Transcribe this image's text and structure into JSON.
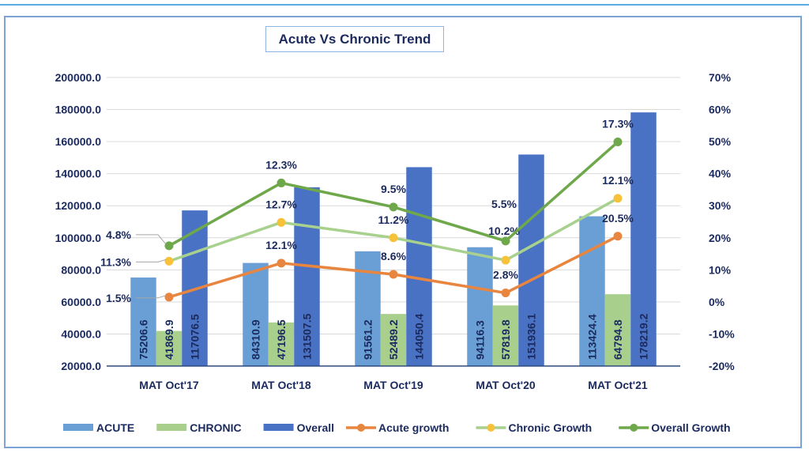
{
  "chart_data": {
    "type": "bar",
    "title": "Acute Vs Chronic Trend",
    "categories": [
      "MAT Oct'17",
      "MAT Oct'18",
      "MAT Oct'19",
      "MAT Oct'20",
      "MAT Oct'21"
    ],
    "y_left": {
      "range": [
        20000,
        200000
      ],
      "ticks": [
        "200000.0",
        "180000.0",
        "160000.0",
        "140000.0",
        "120000.0",
        "100000.0",
        "80000.0",
        "60000.0",
        "40000.0",
        "20000.0"
      ]
    },
    "y_right": {
      "range": [
        -20,
        70
      ],
      "ticks": [
        "70%",
        "60%",
        "50%",
        "40%",
        "30%",
        "20%",
        "10%",
        "0%",
        "-10%",
        "-20%"
      ]
    },
    "grid": true,
    "legend_position": "bottom",
    "bar_series": [
      {
        "name": "ACUTE",
        "color": "#6A9FD6",
        "values": [
          75206.6,
          84310.9,
          91561.2,
          94116.3,
          113424.4
        ],
        "labels": [
          "75206.6",
          "84310.9",
          "91561.2",
          "94116.3",
          "113424.4"
        ]
      },
      {
        "name": "CHRONIC",
        "color": "#A9CF8C",
        "values": [
          41869.9,
          47196.5,
          52489.2,
          57819.8,
          64794.8
        ],
        "labels": [
          "41869.9",
          "47196.5",
          "52489.2",
          "57819.8",
          "64794.8"
        ]
      },
      {
        "name": "Overall",
        "color": "#4A72C4",
        "values": [
          117076.5,
          131507.5,
          144050.4,
          151936.1,
          178219.2
        ],
        "labels": [
          "117076.5",
          "131507.5",
          "144050.4",
          "151936.1",
          "178219.2"
        ]
      }
    ],
    "line_series": [
      {
        "name": "Acute growth",
        "color": "#E8853F",
        "marker": "#E8853F",
        "plotted_values": [
          1.5,
          12.1,
          8.6,
          2.8,
          20.5
        ],
        "labels": [
          "1.5%",
          "12.1%",
          "8.6%",
          "2.8%",
          "20.5%"
        ]
      },
      {
        "name": "Chronic Growth",
        "color": "#A9D18E",
        "marker": "#F8C13A",
        "plotted_values": [
          12.7,
          24.8,
          20.0,
          13.0,
          32.3
        ],
        "labels": [
          "11.3%",
          "12.7%",
          "11.2%",
          "10.2%",
          "12.1%"
        ]
      },
      {
        "name": "Overall Growth",
        "color": "#6FA84A",
        "marker": "#6FA84A",
        "plotted_values": [
          17.5,
          37.1,
          29.6,
          19.0,
          49.9
        ],
        "labels": [
          "4.8%",
          "12.3%",
          "9.5%",
          "5.5%",
          "17.3%"
        ]
      }
    ]
  }
}
